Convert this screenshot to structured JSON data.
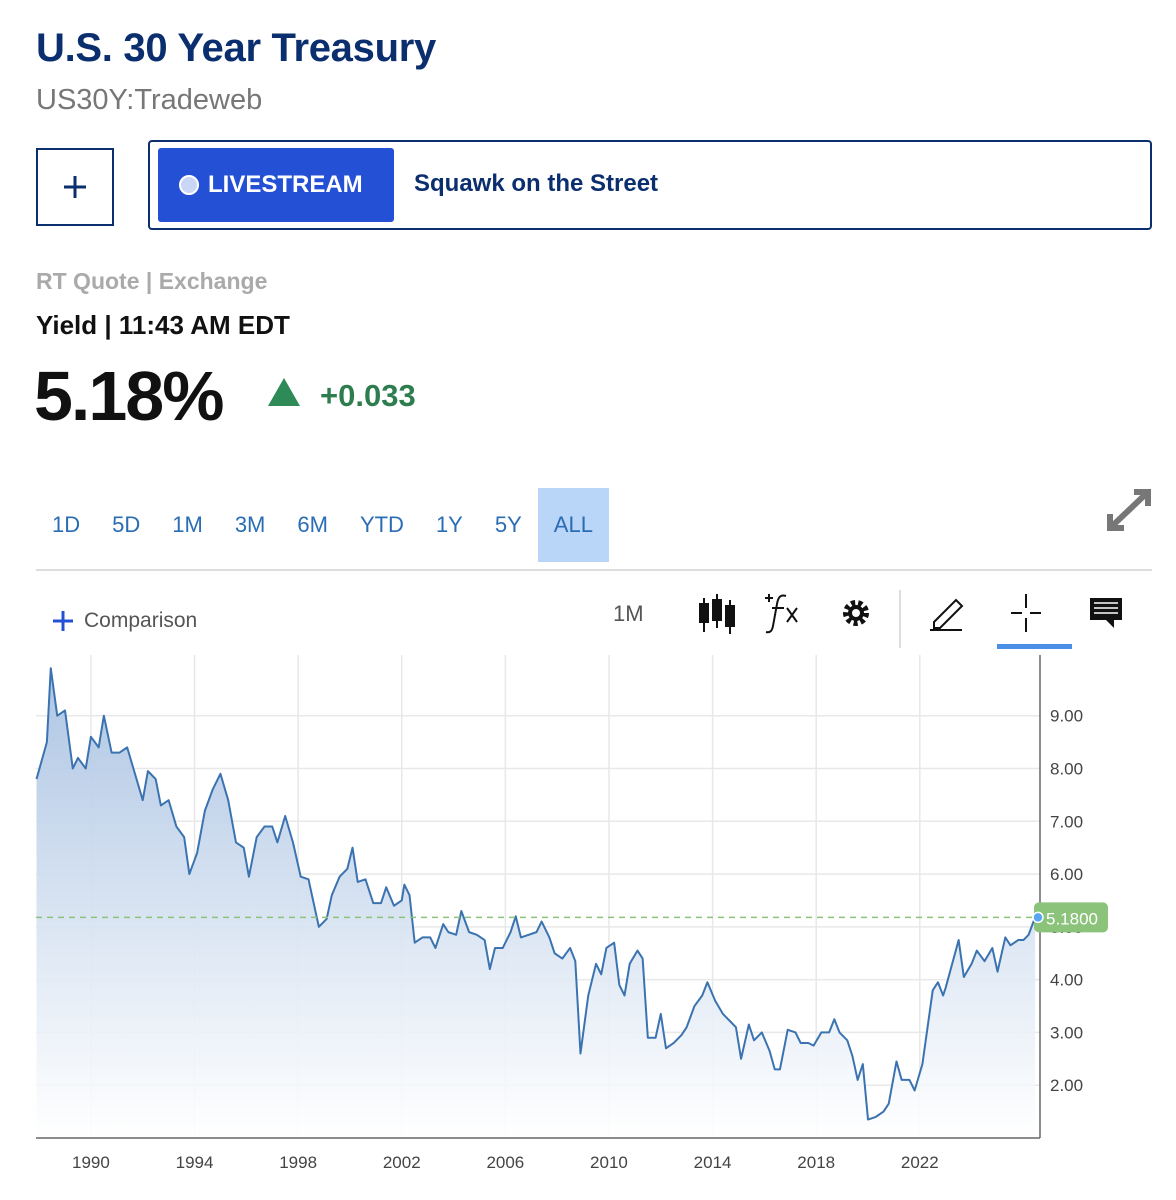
{
  "header": {
    "title": "U.S. 30 Year Treasury",
    "symbol": "US30Y:Tradeweb"
  },
  "livestream": {
    "button": "LIVESTREAM",
    "show": "Squawk on the Street"
  },
  "quote": {
    "source": "RT Quote | Exchange",
    "meta": "Yield | 11:43 AM EDT",
    "price": "5.18%",
    "change": "+0.033"
  },
  "range_tabs": [
    "1D",
    "5D",
    "1M",
    "3M",
    "6M",
    "YTD",
    "1Y",
    "5Y",
    "ALL"
  ],
  "selected_range": "ALL",
  "toolbar": {
    "comparison": "Comparison",
    "interval": "1M"
  },
  "chart_data": {
    "type": "line",
    "x": [
      1987.9,
      1988.3,
      1988.45,
      1988.7,
      1989.0,
      1989.3,
      1989.5,
      1989.8,
      1990.0,
      1990.3,
      1990.5,
      1990.8,
      1991.1,
      1991.4,
      1991.7,
      1992.0,
      1992.2,
      1992.5,
      1992.7,
      1993.0,
      1993.3,
      1993.6,
      1993.8,
      1994.1,
      1994.4,
      1994.7,
      1995.0,
      1995.3,
      1995.6,
      1995.9,
      1996.1,
      1996.4,
      1996.7,
      1997.0,
      1997.2,
      1997.5,
      1997.8,
      1998.1,
      1998.4,
      1998.8,
      1999.1,
      1999.3,
      1999.6,
      1999.9,
      2000.1,
      2000.3,
      2000.6,
      2000.9,
      2001.2,
      2001.4,
      2001.7,
      2002.0,
      2002.1,
      2002.3,
      2002.5,
      2002.8,
      2003.1,
      2003.3,
      2003.6,
      2003.8,
      2004.1,
      2004.3,
      2004.6,
      2004.9,
      2005.2,
      2005.4,
      2005.6,
      2005.9,
      2006.2,
      2006.4,
      2006.6,
      2006.9,
      2007.2,
      2007.4,
      2007.7,
      2007.9,
      2008.2,
      2008.5,
      2008.7,
      2008.9,
      2009.2,
      2009.5,
      2009.7,
      2009.9,
      2010.2,
      2010.4,
      2010.6,
      2010.8,
      2011.1,
      2011.3,
      2011.5,
      2011.8,
      2012.0,
      2012.2,
      2012.5,
      2012.8,
      2013.0,
      2013.3,
      2013.6,
      2013.8,
      2014.1,
      2014.4,
      2014.7,
      2014.9,
      2015.1,
      2015.4,
      2015.6,
      2015.9,
      2016.2,
      2016.4,
      2016.6,
      2016.9,
      2017.2,
      2017.4,
      2017.7,
      2017.9,
      2018.2,
      2018.5,
      2018.7,
      2018.9,
      2019.2,
      2019.4,
      2019.6,
      2019.8,
      2020.0,
      2020.3,
      2020.6,
      2020.8,
      2021.1,
      2021.3,
      2021.6,
      2021.8,
      2022.1,
      2022.3,
      2022.5,
      2022.7,
      2022.9,
      2023.0,
      2023.5,
      2023.7,
      2024.0,
      2024.2,
      2024.5,
      2024.8,
      2025.0,
      2025.3,
      2025.5,
      2025.8,
      2026.0,
      2026.2,
      2026.45
    ],
    "values": [
      7.8,
      8.5,
      9.9,
      9.0,
      9.1,
      8.0,
      8.2,
      8.0,
      8.6,
      8.4,
      9.0,
      8.3,
      8.3,
      8.4,
      7.9,
      7.4,
      7.95,
      7.8,
      7.3,
      7.4,
      6.9,
      6.7,
      6.0,
      6.4,
      7.2,
      7.6,
      7.9,
      7.4,
      6.6,
      6.5,
      5.95,
      6.7,
      6.9,
      6.9,
      6.6,
      7.1,
      6.6,
      5.95,
      5.9,
      5.0,
      5.15,
      5.6,
      5.95,
      6.1,
      6.5,
      5.85,
      5.9,
      5.45,
      5.45,
      5.75,
      5.4,
      5.5,
      5.8,
      5.6,
      4.7,
      4.8,
      4.8,
      4.6,
      5.05,
      4.9,
      4.85,
      5.3,
      4.9,
      4.85,
      4.75,
      4.2,
      4.6,
      4.6,
      4.9,
      5.2,
      4.8,
      4.85,
      4.9,
      5.1,
      4.8,
      4.5,
      4.4,
      4.6,
      4.35,
      2.6,
      3.7,
      4.3,
      4.1,
      4.6,
      4.7,
      3.9,
      3.7,
      4.3,
      4.55,
      4.4,
      2.9,
      2.9,
      3.35,
      2.7,
      2.8,
      2.95,
      3.1,
      3.5,
      3.7,
      3.95,
      3.6,
      3.35,
      3.2,
      3.1,
      2.5,
      3.15,
      2.85,
      3.0,
      2.65,
      2.3,
      2.3,
      3.05,
      3.0,
      2.8,
      2.8,
      2.75,
      3.0,
      3.0,
      3.25,
      3.0,
      2.85,
      2.55,
      2.1,
      2.4,
      1.35,
      1.4,
      1.5,
      1.65,
      2.45,
      2.1,
      2.1,
      1.9,
      2.4,
      3.1,
      3.8,
      3.95,
      3.7,
      3.85,
      4.75,
      4.05,
      4.3,
      4.55,
      4.35,
      4.6,
      4.15,
      4.8,
      4.65,
      4.75,
      4.75,
      4.85,
      5.18
    ],
    "color": "#3b73b0",
    "area": true,
    "xlim": [
      1987.88,
      2026.64
    ],
    "xticks": [
      1990,
      1994,
      1998,
      2002,
      2006,
      2010,
      2014,
      2018,
      2022
    ],
    "ylim": [
      1.0,
      10.15
    ],
    "yticks": [
      {
        "value": 2,
        "label": "2.00"
      },
      {
        "value": 3,
        "label": "3.00"
      },
      {
        "value": 4,
        "label": "4.00"
      },
      {
        "value": 5,
        "label": "5.00"
      },
      {
        "value": 6,
        "label": "6.00"
      },
      {
        "value": 7,
        "label": "7.00"
      },
      {
        "value": 8,
        "label": "8.00"
      },
      {
        "value": 9,
        "label": "9.00"
      }
    ],
    "grid": true,
    "reference_line": {
      "value": 5.18,
      "label": "5.1800",
      "color": "#8cc37a"
    }
  }
}
